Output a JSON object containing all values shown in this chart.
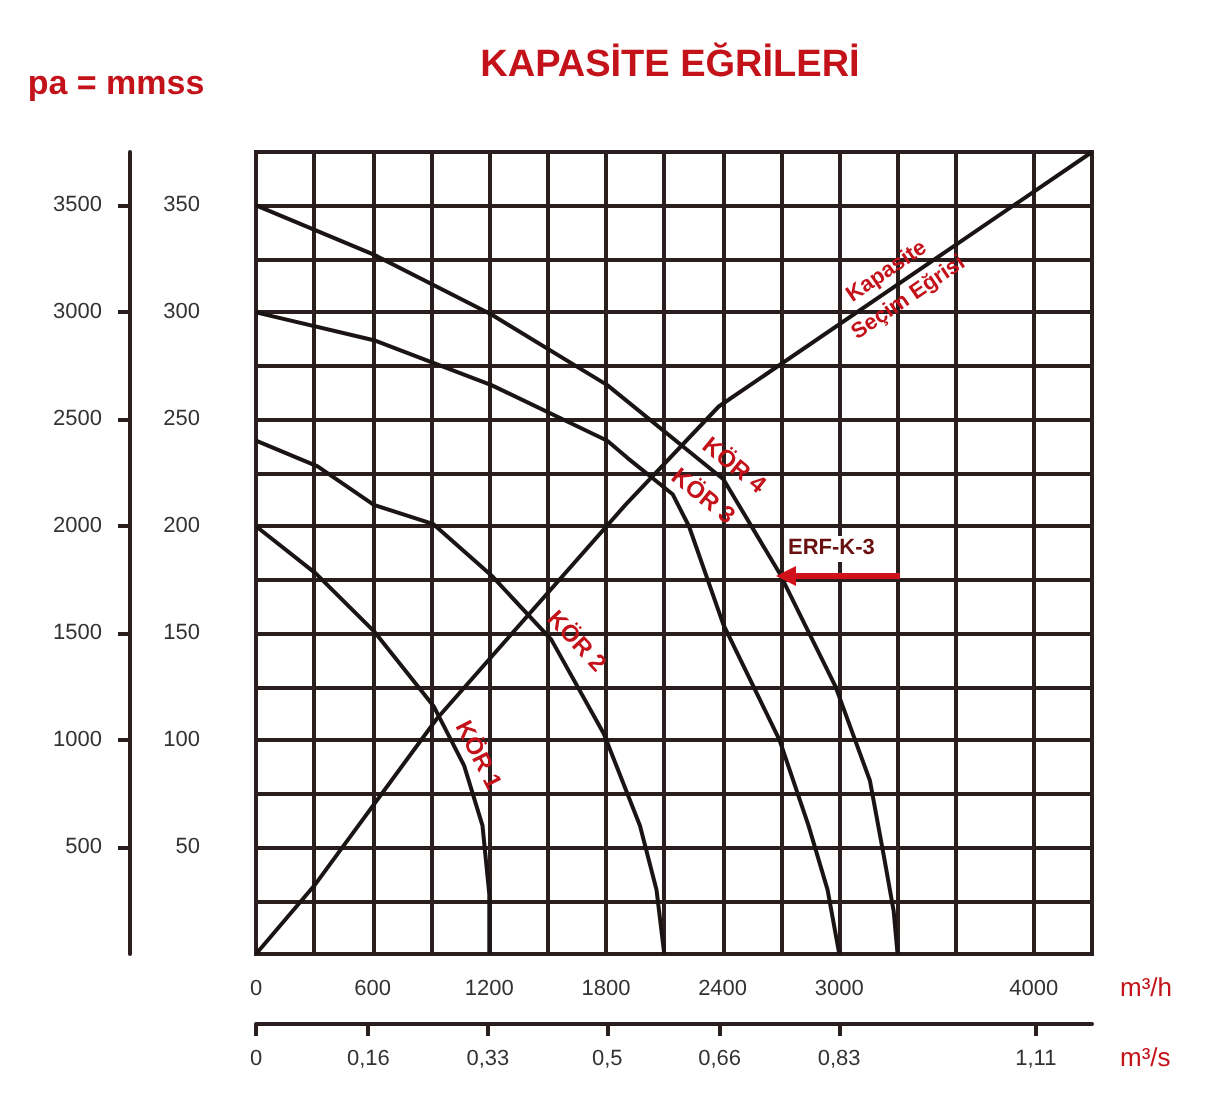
{
  "chart_data": {
    "type": "line",
    "title": "KAPASİTE EĞRİLERİ",
    "y2label": "pa = mmss",
    "xlabel": "m³/h",
    "x2label": "m³/s",
    "xlim": [
      0,
      4300
    ],
    "xticks": [
      0,
      {
        "value": 300,
        "label": null
      },
      600,
      {
        "value": 900,
        "label": null
      },
      1200,
      {
        "value": 1500,
        "label": null
      },
      1800,
      {
        "value": 2100,
        "label": null
      },
      2400,
      {
        "value": 2700,
        "label": null
      },
      3000,
      {
        "value": 3300,
        "label": null
      },
      {
        "value": 3600,
        "label": null
      },
      4000
    ],
    "x2lim": [
      0,
      1.19
    ],
    "x2ticks": [
      0,
      {
        "value": 0.16,
        "label": "0,16"
      },
      {
        "value": 0.33,
        "label": "0,33"
      },
      {
        "value": 0.5,
        "label": "0,5"
      },
      {
        "value": 0.66,
        "label": "0,66"
      },
      {
        "value": 0.83,
        "label": "0,83"
      },
      {
        "value": 1.11,
        "label": "1,11"
      }
    ],
    "ylim": [
      0,
      375
    ],
    "yticks": [
      {
        "value": 0,
        "label": null
      },
      {
        "value": 25,
        "label": null
      },
      50,
      {
        "value": 75,
        "label": null
      },
      100,
      {
        "value": 125,
        "label": null
      },
      150,
      {
        "value": 175,
        "label": null
      },
      200,
      {
        "value": 225,
        "label": null
      },
      250,
      {
        "value": 275,
        "label": null
      },
      300,
      {
        "value": 325,
        "label": null
      },
      350
    ],
    "y2lim": [
      0,
      3750
    ],
    "y2ticks": [
      500,
      1000,
      1500,
      2000,
      2500,
      3000,
      3500
    ],
    "grid": true,
    "marker": "none",
    "series": [
      {
        "name": "KÖR 1",
        "color": "#1a1414",
        "x": [
          0,
          307,
          606,
          913,
          1071,
          1165,
          1200,
          1200
        ],
        "values": [
          200,
          178,
          151,
          116,
          88,
          60,
          28,
          0
        ]
      },
      {
        "name": "KÖR 2",
        "color": "#1a1414",
        "x": [
          0,
          317,
          606,
          913,
          1211,
          1519,
          1789,
          1975,
          2060,
          2100
        ],
        "values": [
          240,
          228,
          210,
          201,
          177,
          147,
          103,
          60,
          30,
          0
        ]
      },
      {
        "name": "KÖR 3",
        "color": "#1a1414",
        "x": [
          0,
          606,
          1211,
          1807,
          1910,
          2143,
          2227,
          2404,
          2693,
          2842,
          2940,
          3000
        ],
        "values": [
          300,
          287,
          266,
          240,
          232,
          215,
          200,
          154,
          100,
          60,
          30,
          0
        ]
      },
      {
        "name": "KÖR 4",
        "color": "#1a1414",
        "x": [
          0,
          606,
          1211,
          1807,
          2404,
          2693,
          2981,
          3158,
          3233,
          3280,
          3300
        ],
        "values": [
          350,
          327,
          299,
          266,
          222,
          178,
          125,
          81,
          44,
          20,
          0
        ]
      },
      {
        "name": "Kapasite Seçim Eğrisi",
        "color": "#1a1414",
        "x": [
          0,
          300,
          930,
          1900,
          2380,
          4300
        ],
        "values": [
          0,
          32,
          110,
          210,
          256,
          375
        ]
      }
    ],
    "annotations": [
      "ERF-K-3"
    ]
  }
}
